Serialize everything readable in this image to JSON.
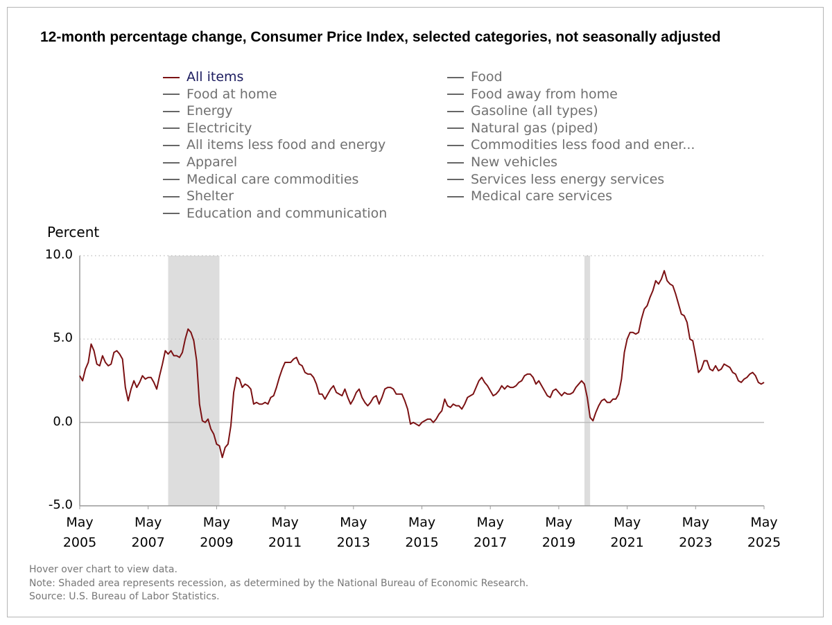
{
  "chart_data": {
    "type": "line",
    "title": "12-month percentage change, Consumer Price Index, selected categories, not seasonally adjusted",
    "y_label": "Percent",
    "x": [
      "2005-05",
      "2005-06",
      "2005-07",
      "2005-08",
      "2005-09",
      "2005-10",
      "2005-11",
      "2005-12",
      "2006-01",
      "2006-02",
      "2006-03",
      "2006-04",
      "2006-05",
      "2006-06",
      "2006-07",
      "2006-08",
      "2006-09",
      "2006-10",
      "2006-11",
      "2006-12",
      "2007-01",
      "2007-02",
      "2007-03",
      "2007-04",
      "2007-05",
      "2007-06",
      "2007-07",
      "2007-08",
      "2007-09",
      "2007-10",
      "2007-11",
      "2007-12",
      "2008-01",
      "2008-02",
      "2008-03",
      "2008-04",
      "2008-05",
      "2008-06",
      "2008-07",
      "2008-08",
      "2008-09",
      "2008-10",
      "2008-11",
      "2008-12",
      "2009-01",
      "2009-02",
      "2009-03",
      "2009-04",
      "2009-05",
      "2009-06",
      "2009-07",
      "2009-08",
      "2009-09",
      "2009-10",
      "2009-11",
      "2009-12",
      "2010-01",
      "2010-02",
      "2010-03",
      "2010-04",
      "2010-05",
      "2010-06",
      "2010-07",
      "2010-08",
      "2010-09",
      "2010-10",
      "2010-11",
      "2010-12",
      "2011-01",
      "2011-02",
      "2011-03",
      "2011-04",
      "2011-05",
      "2011-06",
      "2011-07",
      "2011-08",
      "2011-09",
      "2011-10",
      "2011-11",
      "2011-12",
      "2012-01",
      "2012-02",
      "2012-03",
      "2012-04",
      "2012-05",
      "2012-06",
      "2012-07",
      "2012-08",
      "2012-09",
      "2012-10",
      "2012-11",
      "2012-12",
      "2013-01",
      "2013-02",
      "2013-03",
      "2013-04",
      "2013-05",
      "2013-06",
      "2013-07",
      "2013-08",
      "2013-09",
      "2013-10",
      "2013-11",
      "2013-12",
      "2014-01",
      "2014-02",
      "2014-03",
      "2014-04",
      "2014-05",
      "2014-06",
      "2014-07",
      "2014-08",
      "2014-09",
      "2014-10",
      "2014-11",
      "2014-12",
      "2015-01",
      "2015-02",
      "2015-03",
      "2015-04",
      "2015-05",
      "2015-06",
      "2015-07",
      "2015-08",
      "2015-09",
      "2015-10",
      "2015-11",
      "2015-12",
      "2016-01",
      "2016-02",
      "2016-03",
      "2016-04",
      "2016-05",
      "2016-06",
      "2016-07",
      "2016-08",
      "2016-09",
      "2016-10",
      "2016-11",
      "2016-12",
      "2017-01",
      "2017-02",
      "2017-03",
      "2017-04",
      "2017-05",
      "2017-06",
      "2017-07",
      "2017-08",
      "2017-09",
      "2017-10",
      "2017-11",
      "2017-12",
      "2018-01",
      "2018-02",
      "2018-03",
      "2018-04",
      "2018-05",
      "2018-06",
      "2018-07",
      "2018-08",
      "2018-09",
      "2018-10",
      "2018-11",
      "2018-12",
      "2019-01",
      "2019-02",
      "2019-03",
      "2019-04",
      "2019-05",
      "2019-06",
      "2019-07",
      "2019-08",
      "2019-09",
      "2019-10",
      "2019-11",
      "2019-12",
      "2020-01",
      "2020-02",
      "2020-03",
      "2020-04",
      "2020-05",
      "2020-06",
      "2020-07",
      "2020-08",
      "2020-09",
      "2020-10",
      "2020-11",
      "2020-12",
      "2021-01",
      "2021-02",
      "2021-03",
      "2021-04",
      "2021-05",
      "2021-06",
      "2021-07",
      "2021-08",
      "2021-09",
      "2021-10",
      "2021-11",
      "2021-12",
      "2022-01",
      "2022-02",
      "2022-03",
      "2022-04",
      "2022-05",
      "2022-06",
      "2022-07",
      "2022-08",
      "2022-09",
      "2022-10",
      "2022-11",
      "2022-12",
      "2023-01",
      "2023-02",
      "2023-03",
      "2023-04",
      "2023-05",
      "2023-06",
      "2023-07",
      "2023-08",
      "2023-09",
      "2023-10",
      "2023-11",
      "2023-12",
      "2024-01",
      "2024-02",
      "2024-03",
      "2024-04",
      "2024-05",
      "2024-06",
      "2024-07",
      "2024-08",
      "2024-09",
      "2024-10",
      "2024-11",
      "2024-12",
      "2025-01",
      "2025-02",
      "2025-03",
      "2025-04",
      "2025-05"
    ],
    "series": [
      {
        "name": "All items",
        "color": "#7b1113",
        "values": [
          2.8,
          2.5,
          3.2,
          3.6,
          4.7,
          4.3,
          3.5,
          3.4,
          4.0,
          3.6,
          3.4,
          3.5,
          4.2,
          4.3,
          4.1,
          3.8,
          2.1,
          1.3,
          2.0,
          2.5,
          2.1,
          2.4,
          2.8,
          2.6,
          2.7,
          2.7,
          2.4,
          2.0,
          2.8,
          3.5,
          4.3,
          4.1,
          4.3,
          4.0,
          4.0,
          3.9,
          4.2,
          5.0,
          5.6,
          5.4,
          4.9,
          3.7,
          1.1,
          0.1,
          0.0,
          0.2,
          -0.4,
          -0.7,
          -1.3,
          -1.4,
          -2.1,
          -1.5,
          -1.3,
          -0.2,
          1.8,
          2.7,
          2.6,
          2.1,
          2.3,
          2.2,
          2.0,
          1.1,
          1.2,
          1.1,
          1.1,
          1.2,
          1.1,
          1.5,
          1.6,
          2.1,
          2.7,
          3.2,
          3.6,
          3.6,
          3.6,
          3.8,
          3.9,
          3.5,
          3.4,
          3.0,
          2.9,
          2.9,
          2.7,
          2.3,
          1.7,
          1.7,
          1.4,
          1.7,
          2.0,
          2.2,
          1.8,
          1.7,
          1.6,
          2.0,
          1.5,
          1.1,
          1.4,
          1.8,
          2.0,
          1.5,
          1.2,
          1.0,
          1.2,
          1.5,
          1.6,
          1.1,
          1.5,
          2.0,
          2.1,
          2.1,
          2.0,
          1.7,
          1.7,
          1.7,
          1.3,
          0.8,
          -0.1,
          0.0,
          -0.1,
          -0.2,
          0.0,
          0.1,
          0.2,
          0.2,
          0.0,
          0.2,
          0.5,
          0.7,
          1.4,
          1.0,
          0.9,
          1.1,
          1.0,
          1.0,
          0.8,
          1.1,
          1.5,
          1.6,
          1.7,
          2.1,
          2.5,
          2.7,
          2.4,
          2.2,
          1.9,
          1.6,
          1.7,
          1.9,
          2.2,
          2.0,
          2.2,
          2.1,
          2.1,
          2.2,
          2.4,
          2.5,
          2.8,
          2.9,
          2.9,
          2.7,
          2.3,
          2.5,
          2.2,
          1.9,
          1.6,
          1.5,
          1.9,
          2.0,
          1.8,
          1.6,
          1.8,
          1.7,
          1.7,
          1.8,
          2.1,
          2.3,
          2.5,
          2.3,
          1.5,
          0.3,
          0.1,
          0.6,
          1.0,
          1.3,
          1.4,
          1.2,
          1.2,
          1.4,
          1.4,
          1.7,
          2.6,
          4.2,
          5.0,
          5.4,
          5.4,
          5.3,
          5.4,
          6.2,
          6.8,
          7.0,
          7.5,
          7.9,
          8.5,
          8.3,
          8.6,
          9.1,
          8.5,
          8.3,
          8.2,
          7.7,
          7.1,
          6.5,
          6.4,
          6.0,
          5.0,
          4.9,
          4.0,
          3.0,
          3.2,
          3.7,
          3.7,
          3.2,
          3.1,
          3.4,
          3.1,
          3.2,
          3.5,
          3.4,
          3.3,
          3.0,
          2.9,
          2.5,
          2.4,
          2.6,
          2.7,
          2.9,
          3.0,
          2.8,
          2.4,
          2.3,
          2.4
        ]
      }
    ],
    "legend_items": [
      "All items",
      "Food",
      "Food at home",
      "Food away from home",
      "Energy",
      "Gasoline (all types)",
      "Electricity",
      "Natural gas (piped)",
      "All items less food and energy",
      "Commodities less food and ener...",
      "Apparel",
      "New vehicles",
      "Medical care commodities",
      "Services less energy services",
      "Shelter",
      "Medical care services",
      "Education and communication"
    ],
    "inactive_color": "#666666",
    "xlim": [
      "2005-05",
      "2025-05"
    ],
    "xticks": [
      {
        "value": "2005-05",
        "label": "May 2005"
      },
      {
        "value": "2007-05",
        "label": "May 2007"
      },
      {
        "value": "2009-05",
        "label": "May 2009"
      },
      {
        "value": "2011-05",
        "label": "May 2011"
      },
      {
        "value": "2013-05",
        "label": "May 2013"
      },
      {
        "value": "2015-05",
        "label": "May 2015"
      },
      {
        "value": "2017-05",
        "label": "May 2017"
      },
      {
        "value": "2019-05",
        "label": "May 2019"
      },
      {
        "value": "2021-05",
        "label": "May 2021"
      },
      {
        "value": "2023-05",
        "label": "May 2023"
      },
      {
        "value": "2025-05",
        "label": "May 2025"
      }
    ],
    "ylim": [
      -5,
      10
    ],
    "yticks": [
      {
        "value": -5,
        "label": "-5.0"
      },
      {
        "value": 0,
        "label": "0.0"
      },
      {
        "value": 5,
        "label": "5.0"
      },
      {
        "value": 10,
        "label": "10.0"
      }
    ],
    "grid": true,
    "recessions": [
      {
        "start": "2007-12",
        "end": "2009-06"
      },
      {
        "start": "2020-02",
        "end": "2020-04"
      }
    ],
    "recession_color": "#dddddd",
    "notes": [
      "Hover over chart to view data.",
      "Note: Shaded area represents recession, as determined by the National Bureau of Economic Research.",
      "Source: U.S. Bureau of Labor Statistics."
    ]
  }
}
